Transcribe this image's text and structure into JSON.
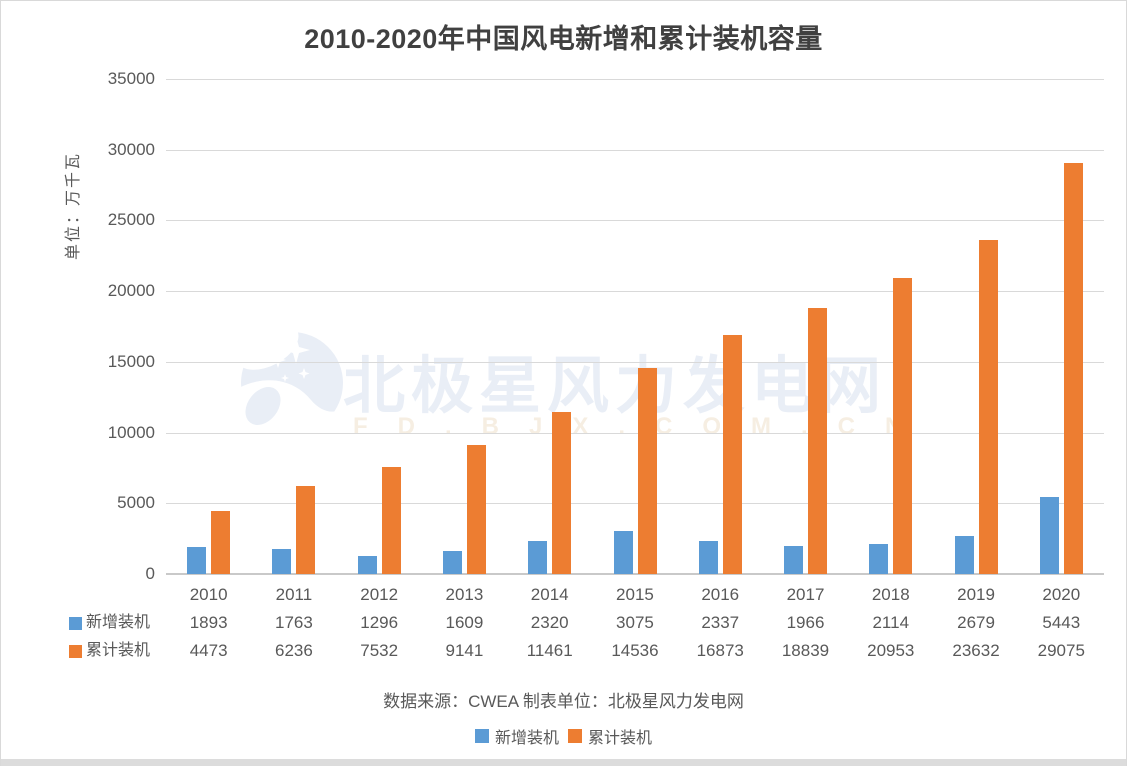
{
  "page": {
    "source_note": "数据来源：CWEA 制表单位：北极星风力发电网",
    "watermark": {
      "text": "北极星风力发电网",
      "subtext": "FD.BJX.COM.CN"
    }
  },
  "chart_data": {
    "type": "bar",
    "title": "2010-2020年中国风电新增和累计装机容量",
    "xlabel": "",
    "ylabel": "单位：万千瓦",
    "categories": [
      "2010",
      "2011",
      "2012",
      "2013",
      "2014",
      "2015",
      "2016",
      "2017",
      "2018",
      "2019",
      "2020"
    ],
    "series": [
      {
        "key": "new-capacity",
        "name": "新增装机",
        "color": "#5B9BD5",
        "values": [
          1893,
          1763,
          1296,
          1609,
          2320,
          3075,
          2337,
          1966,
          2114,
          2679,
          5443
        ]
      },
      {
        "key": "cumulative-capacity",
        "name": "累计装机",
        "color": "#ED7D31",
        "values": [
          4473,
          6236,
          7532,
          9141,
          11461,
          14536,
          16873,
          18839,
          20953,
          23632,
          29075
        ]
      }
    ],
    "ylim": [
      0,
      35000
    ],
    "ytick_step": 5000,
    "grid": true,
    "gridline_color": "#d9d9d9",
    "legend_position": "bottom",
    "data_table_shown": true
  }
}
